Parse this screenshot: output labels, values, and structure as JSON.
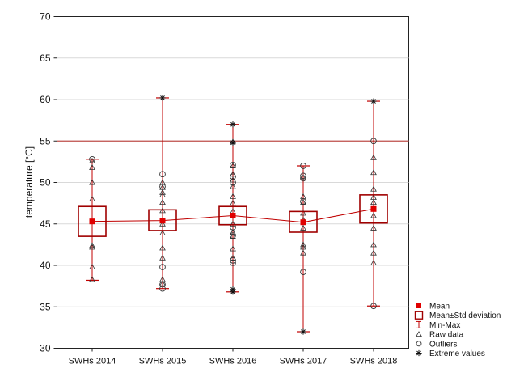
{
  "chart_data": {
    "type": "box",
    "xlabel": "",
    "ylabel": "temperature   [°C]",
    "ylim": [
      30,
      70
    ],
    "yticks": [
      30,
      35,
      40,
      45,
      50,
      55,
      60,
      65,
      70
    ],
    "grid": true,
    "reference_line": {
      "y": 55,
      "color": "#c0504d"
    },
    "categories": [
      "SWHs 2014",
      "SWHs 2015",
      "SWHs 2016",
      "SWHs 2017",
      "SWHs 2018"
    ],
    "mean": [
      45.3,
      45.4,
      46.0,
      45.2,
      46.8
    ],
    "std_low": [
      43.5,
      44.2,
      44.9,
      44.0,
      45.1
    ],
    "std_high": [
      47.1,
      46.7,
      47.1,
      46.5,
      48.5
    ],
    "min": [
      38.2,
      37.2,
      36.8,
      32.0,
      35.1
    ],
    "max": [
      52.8,
      60.2,
      57.0,
      52.0,
      59.8
    ],
    "raw_data": [
      [
        38.3,
        39.8,
        42.2,
        42.4,
        48.0,
        50.0,
        51.8,
        52.6
      ],
      [
        37.8,
        38.3,
        40.9,
        42.1,
        43.9,
        45.0,
        46.6,
        47.6,
        48.5,
        48.8,
        49.4,
        50.0
      ],
      [
        40.9,
        42.0,
        43.5,
        44.0,
        45.0,
        46.5,
        47.5,
        48.3,
        49.5,
        50.3,
        51.0,
        52.0,
        54.9
      ],
      [
        41.5,
        42.2,
        42.5,
        44.5,
        45.5,
        46.3,
        47.6,
        48.3,
        50.6
      ],
      [
        40.3,
        41.5,
        42.5,
        44.5,
        46.0,
        47.6,
        48.2,
        49.2,
        51.2,
        53.0
      ]
    ],
    "outliers": [
      [
        52.8
      ],
      [
        37.2,
        37.7,
        39.8,
        49.5,
        51.0
      ],
      [
        40.3,
        40.6,
        43.6,
        44.6,
        50.0,
        50.7,
        52.1
      ],
      [
        39.2,
        47.7,
        50.5,
        50.8,
        52.0
      ],
      [
        35.1,
        55.0
      ]
    ],
    "extremes": [
      [],
      [
        60.2
      ],
      [
        36.8,
        37.1,
        54.8,
        57.0
      ],
      [
        32.0
      ],
      [
        59.8
      ]
    ],
    "legend": {
      "placement": "bottom-right",
      "items": [
        "Mean",
        "Mean±Std deviation",
        "Min-Max",
        "Raw data",
        "Outliers",
        "Extreme values"
      ]
    },
    "colors": {
      "series": "#c00000",
      "mean": "#e00000",
      "markers": "#333333",
      "grid": "#d9d9d9"
    }
  }
}
